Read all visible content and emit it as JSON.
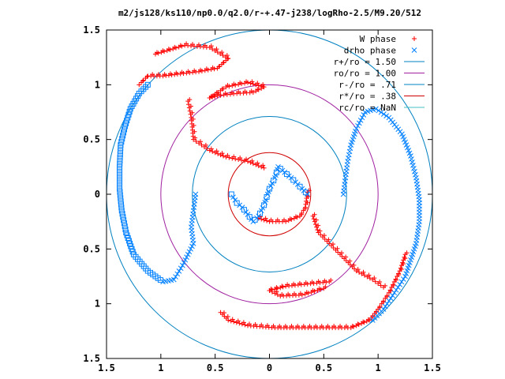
{
  "chart_data": {
    "type": "scatter",
    "title": "m2/js128/ks110/np0.0/q2.0/r-+.47-j238/logRho-2.5/M9.20/512",
    "xlim": [
      -1.5,
      1.5
    ],
    "ylim": [
      -1.5,
      1.5
    ],
    "x_ticks": [
      -1.5,
      -1,
      -0.5,
      0,
      0.5,
      1,
      1.5
    ],
    "x_tick_labels": [
      "1.5",
      "1",
      "0.5",
      "0",
      "0.5",
      "1",
      "1.5"
    ],
    "y_ticks": [
      1.5,
      1,
      0.5,
      0,
      -0.5,
      -1,
      -1.5
    ],
    "y_tick_labels": [
      "1.5",
      "1",
      "0.5",
      "0",
      "0.5",
      "1",
      "1.5"
    ],
    "grid": false,
    "legend_position": "top-right",
    "colors": {
      "w_phase": "#ff0000",
      "drho_phase": "#0080ff",
      "circle_outer": "#0080c0",
      "circle_ro": "#a020a0",
      "circle_rminus": "#0080c0",
      "circle_rstar": "#d00000",
      "circle_rc": "#40c0c0"
    },
    "series": [
      {
        "name": "W phase",
        "marker": "plus",
        "color": "#ff0000",
        "arms": [
          [
            [
              -1.05,
              1.28
            ],
            [
              -0.78,
              1.36
            ],
            [
              -0.55,
              1.34
            ],
            [
              -0.38,
              1.24
            ],
            [
              -0.48,
              1.15
            ],
            [
              -0.65,
              1.12
            ],
            [
              -0.82,
              1.1
            ],
            [
              -0.98,
              1.08
            ],
            [
              -1.12,
              1.08
            ],
            [
              -1.2,
              1.0
            ]
          ],
          [
            [
              -0.55,
              0.88
            ],
            [
              -0.4,
              0.98
            ],
            [
              -0.2,
              1.02
            ],
            [
              -0.05,
              0.98
            ],
            [
              -0.15,
              0.93
            ],
            [
              -0.3,
              0.92
            ],
            [
              -0.48,
              0.9
            ],
            [
              -0.55,
              0.88
            ]
          ],
          [
            [
              -0.75,
              0.85
            ],
            [
              -0.72,
              0.7
            ],
            [
              -0.7,
              0.5
            ],
            [
              -0.55,
              0.4
            ],
            [
              -0.4,
              0.34
            ],
            [
              -0.2,
              0.3
            ],
            [
              -0.05,
              0.24
            ]
          ],
          [
            [
              0.35,
              0.02
            ],
            [
              0.33,
              -0.12
            ],
            [
              0.28,
              -0.2
            ],
            [
              0.15,
              -0.25
            ],
            [
              0.0,
              -0.25
            ],
            [
              -0.1,
              -0.22
            ]
          ],
          [
            [
              1.05,
              -0.85
            ],
            [
              0.95,
              -0.78
            ],
            [
              0.8,
              -0.7
            ],
            [
              0.65,
              -0.55
            ],
            [
              0.55,
              -0.45
            ],
            [
              0.45,
              -0.35
            ],
            [
              0.4,
              -0.2
            ]
          ],
          [
            [
              0.55,
              -0.8
            ],
            [
              0.35,
              -0.82
            ],
            [
              0.15,
              -0.84
            ],
            [
              0.0,
              -0.88
            ],
            [
              0.1,
              -0.93
            ],
            [
              0.3,
              -0.92
            ],
            [
              0.5,
              -0.86
            ]
          ],
          [
            [
              1.25,
              -0.55
            ],
            [
              1.2,
              -0.7
            ],
            [
              1.1,
              -0.9
            ],
            [
              1.0,
              -1.05
            ],
            [
              0.92,
              -1.15
            ],
            [
              0.75,
              -1.22
            ],
            [
              0.55,
              -1.22
            ],
            [
              0.3,
              -1.22
            ],
            [
              0.05,
              -1.22
            ],
            [
              -0.2,
              -1.2
            ],
            [
              -0.38,
              -1.15
            ],
            [
              -0.45,
              -1.08
            ]
          ]
        ]
      },
      {
        "name": "drho phase",
        "marker": "cross-square",
        "color": "#0080ff",
        "arms": [
          [
            [
              -1.12,
              1.0
            ],
            [
              -1.2,
              0.92
            ],
            [
              -1.28,
              0.78
            ],
            [
              -1.33,
              0.62
            ],
            [
              -1.37,
              0.45
            ],
            [
              -1.38,
              0.25
            ],
            [
              -1.38,
              0.05
            ],
            [
              -1.36,
              -0.15
            ],
            [
              -1.32,
              -0.35
            ],
            [
              -1.25,
              -0.55
            ],
            [
              -1.12,
              -0.7
            ],
            [
              -0.98,
              -0.8
            ],
            [
              -0.88,
              -0.78
            ],
            [
              -0.8,
              -0.65
            ],
            [
              -0.75,
              -0.55
            ],
            [
              -0.7,
              -0.45
            ],
            [
              -0.72,
              -0.3
            ],
            [
              -0.7,
              -0.15
            ],
            [
              -0.68,
              0.0
            ]
          ],
          [
            [
              -0.35,
              0.0
            ],
            [
              -0.3,
              -0.08
            ],
            [
              -0.25,
              -0.12
            ],
            [
              -0.15,
              -0.25
            ],
            [
              -0.1,
              -0.2
            ],
            [
              -0.05,
              -0.1
            ],
            [
              0.0,
              0.05
            ],
            [
              0.05,
              0.15
            ],
            [
              0.08,
              0.25
            ],
            [
              0.2,
              0.15
            ],
            [
              0.3,
              0.05
            ],
            [
              0.35,
              0.0
            ]
          ],
          [
            [
              0.68,
              0.0
            ],
            [
              0.7,
              0.15
            ],
            [
              0.72,
              0.3
            ],
            [
              0.75,
              0.45
            ],
            [
              0.8,
              0.6
            ],
            [
              0.88,
              0.75
            ],
            [
              0.98,
              0.78
            ],
            [
              1.1,
              0.7
            ],
            [
              1.22,
              0.55
            ],
            [
              1.3,
              0.35
            ],
            [
              1.35,
              0.15
            ],
            [
              1.38,
              -0.05
            ],
            [
              1.38,
              -0.25
            ],
            [
              1.35,
              -0.45
            ],
            [
              1.3,
              -0.6
            ],
            [
              1.25,
              -0.75
            ],
            [
              1.15,
              -0.9
            ],
            [
              1.05,
              -1.05
            ],
            [
              0.95,
              -1.15
            ]
          ]
        ]
      }
    ],
    "circles": [
      {
        "name": "r+/ro = 1.50",
        "r": 1.5,
        "color": "#0080c0"
      },
      {
        "name": "ro/ro = 1.00",
        "r": 1.0,
        "color": "#a020a0"
      },
      {
        "name": "r-/ro = .71",
        "r": 0.71,
        "color": "#0080c0"
      },
      {
        "name": "r*/ro = .38",
        "r": 0.38,
        "color": "#d00000"
      },
      {
        "name": "rc/ro = NaN",
        "r": null,
        "color": "#40c0c0"
      }
    ]
  }
}
